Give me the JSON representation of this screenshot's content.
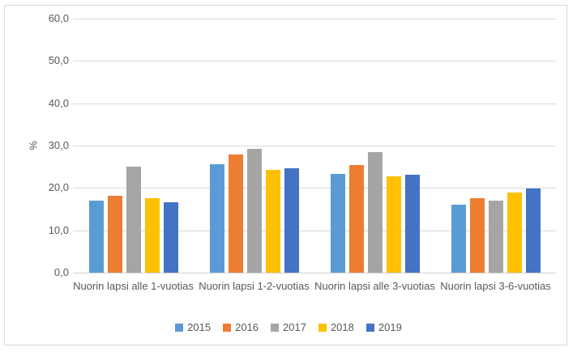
{
  "chart_data": {
    "type": "bar",
    "title": "",
    "xlabel": "",
    "ylabel": "%",
    "ylim": [
      0,
      60
    ],
    "ytick_step": 10,
    "ytick_labels": [
      "0,0",
      "10,0",
      "20,0",
      "30,0",
      "40,0",
      "50,0",
      "60,0"
    ],
    "grid": true,
    "legend_position": "bottom",
    "categories": [
      "Nuorin lapsi alle 1-vuotias",
      "Nuorin lapsi 1-2-vuotias",
      "Nuorin lapsi alle 3-vuotias",
      "Nuorin lapsi 3-6-vuotias"
    ],
    "series": [
      {
        "name": "2015",
        "color": "#5B9BD5",
        "values": [
          17.1,
          25.6,
          23.4,
          16.0
        ]
      },
      {
        "name": "2016",
        "color": "#ED7D31",
        "values": [
          18.1,
          27.9,
          25.5,
          17.6
        ]
      },
      {
        "name": "2017",
        "color": "#A5A5A5",
        "values": [
          25.1,
          29.3,
          28.4,
          17.0
        ]
      },
      {
        "name": "2018",
        "color": "#FFC000",
        "values": [
          17.6,
          24.3,
          22.8,
          19.0
        ]
      },
      {
        "name": "2019",
        "color": "#4472C4",
        "values": [
          16.7,
          24.7,
          23.1,
          19.9
        ]
      }
    ]
  },
  "colors": {
    "text": "#595959",
    "gridline": "#D9D9D9",
    "frame_border": "#D9D9D9",
    "background": "#FFFFFF"
  }
}
